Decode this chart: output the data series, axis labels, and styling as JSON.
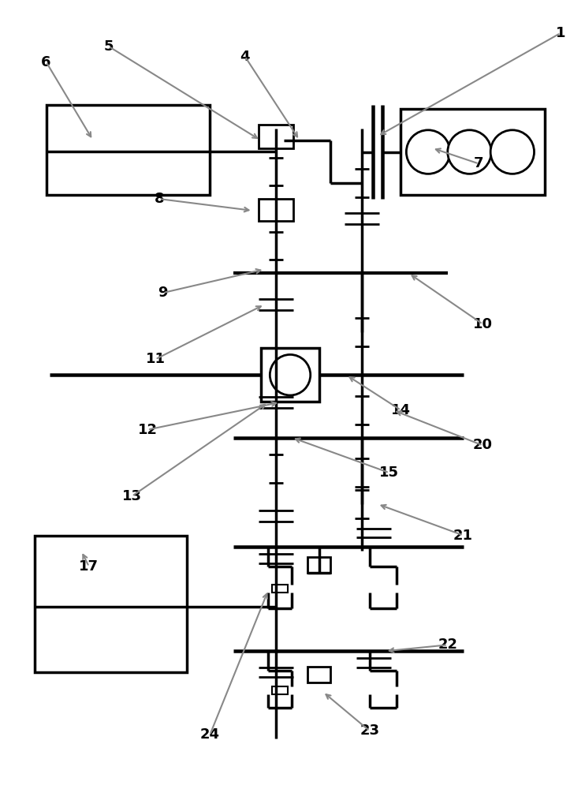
{
  "bg_color": "#ffffff",
  "lc": "#000000",
  "ac": "#888888",
  "lw": 2.5,
  "lw_med": 2.0,
  "lw_thin": 1.5,
  "fig_w": 7.42,
  "fig_h": 10.0,
  "dpi": 100
}
